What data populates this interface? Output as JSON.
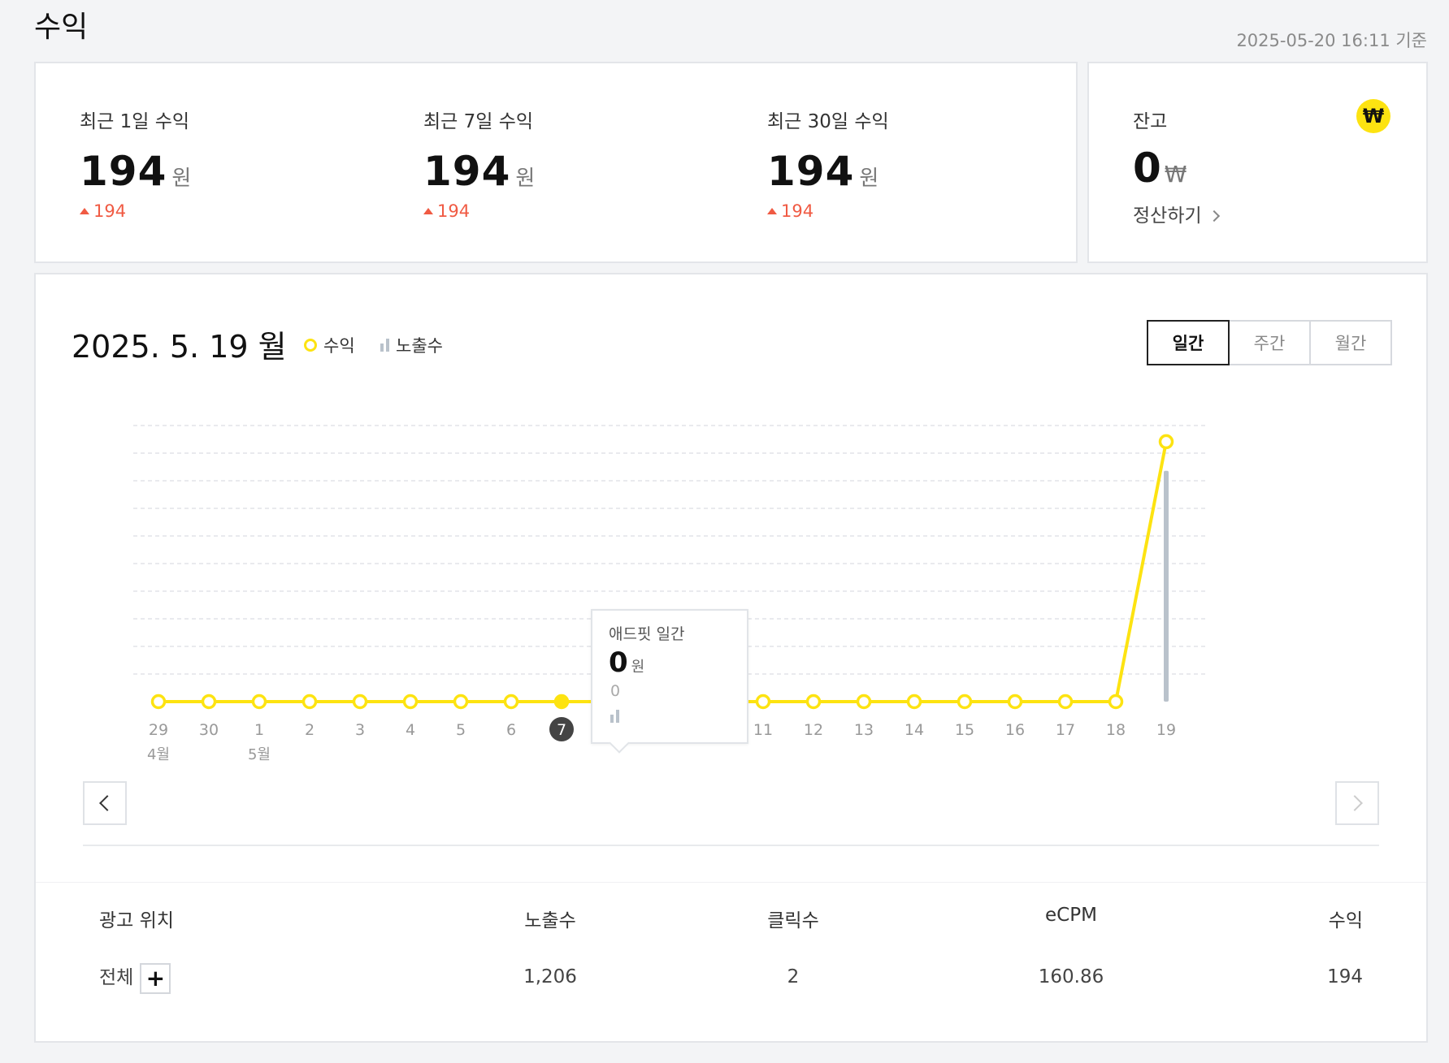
{
  "page": {
    "title": "수익",
    "as_of": "2025-05-20 16:11 기준"
  },
  "earnings": [
    {
      "label": "최근 1일 수익",
      "value": "194",
      "unit": "원",
      "change": "194"
    },
    {
      "label": "최근 7일 수익",
      "value": "194",
      "unit": "원",
      "change": "194"
    },
    {
      "label": "최근 30일 수익",
      "value": "194",
      "unit": "원",
      "change": "194"
    }
  ],
  "balance": {
    "label": "잔고",
    "icon": "won-coin-icon",
    "icon_glyph": "₩",
    "value": "0",
    "unit": "₩",
    "settle_label": "정산하기"
  },
  "chart_panel": {
    "date": "2025. 5. 19 월",
    "legend": {
      "revenue": "수익",
      "impressions": "노출수"
    },
    "tabs": [
      "일간",
      "주간",
      "월간"
    ],
    "active_tab": "일간",
    "tooltip": {
      "title": "애드핏 일간",
      "value": "0",
      "unit": "원",
      "impressions": "0"
    }
  },
  "chart_data": {
    "type": "line",
    "title": "",
    "categories": [
      "29",
      "30",
      "1",
      "2",
      "3",
      "4",
      "5",
      "6",
      "7",
      "8",
      "9",
      "10",
      "11",
      "12",
      "13",
      "14",
      "15",
      "16",
      "17",
      "18",
      "19"
    ],
    "month_labels": [
      {
        "index": 0,
        "text": "4월"
      },
      {
        "index": 2,
        "text": "5월"
      }
    ],
    "series": [
      {
        "name": "수익",
        "type": "line",
        "values": [
          0,
          0,
          0,
          0,
          0,
          0,
          0,
          0,
          0,
          0,
          0,
          0,
          0,
          0,
          0,
          0,
          0,
          0,
          0,
          0,
          194
        ]
      },
      {
        "name": "노출수",
        "type": "bar",
        "values": [
          0,
          0,
          0,
          0,
          0,
          0,
          0,
          0,
          0,
          0,
          0,
          0,
          0,
          0,
          0,
          0,
          0,
          0,
          0,
          0,
          1206
        ]
      }
    ],
    "revenue_ylim": [
      0,
      200
    ],
    "impressions_ylim": [
      0,
      1400
    ],
    "selected_index": 8,
    "grid": true,
    "colors": {
      "revenue": "#fde311",
      "impressions": "#b9c2cb",
      "selected": "#444444"
    }
  },
  "table": {
    "headers": [
      "광고 위치",
      "노출수",
      "클릭수",
      "eCPM",
      "수익"
    ],
    "rows": [
      {
        "position": "전체",
        "impressions": "1,206",
        "clicks": "2",
        "ecpm": "160.86",
        "revenue": "194"
      }
    ],
    "expand_label": "+"
  }
}
